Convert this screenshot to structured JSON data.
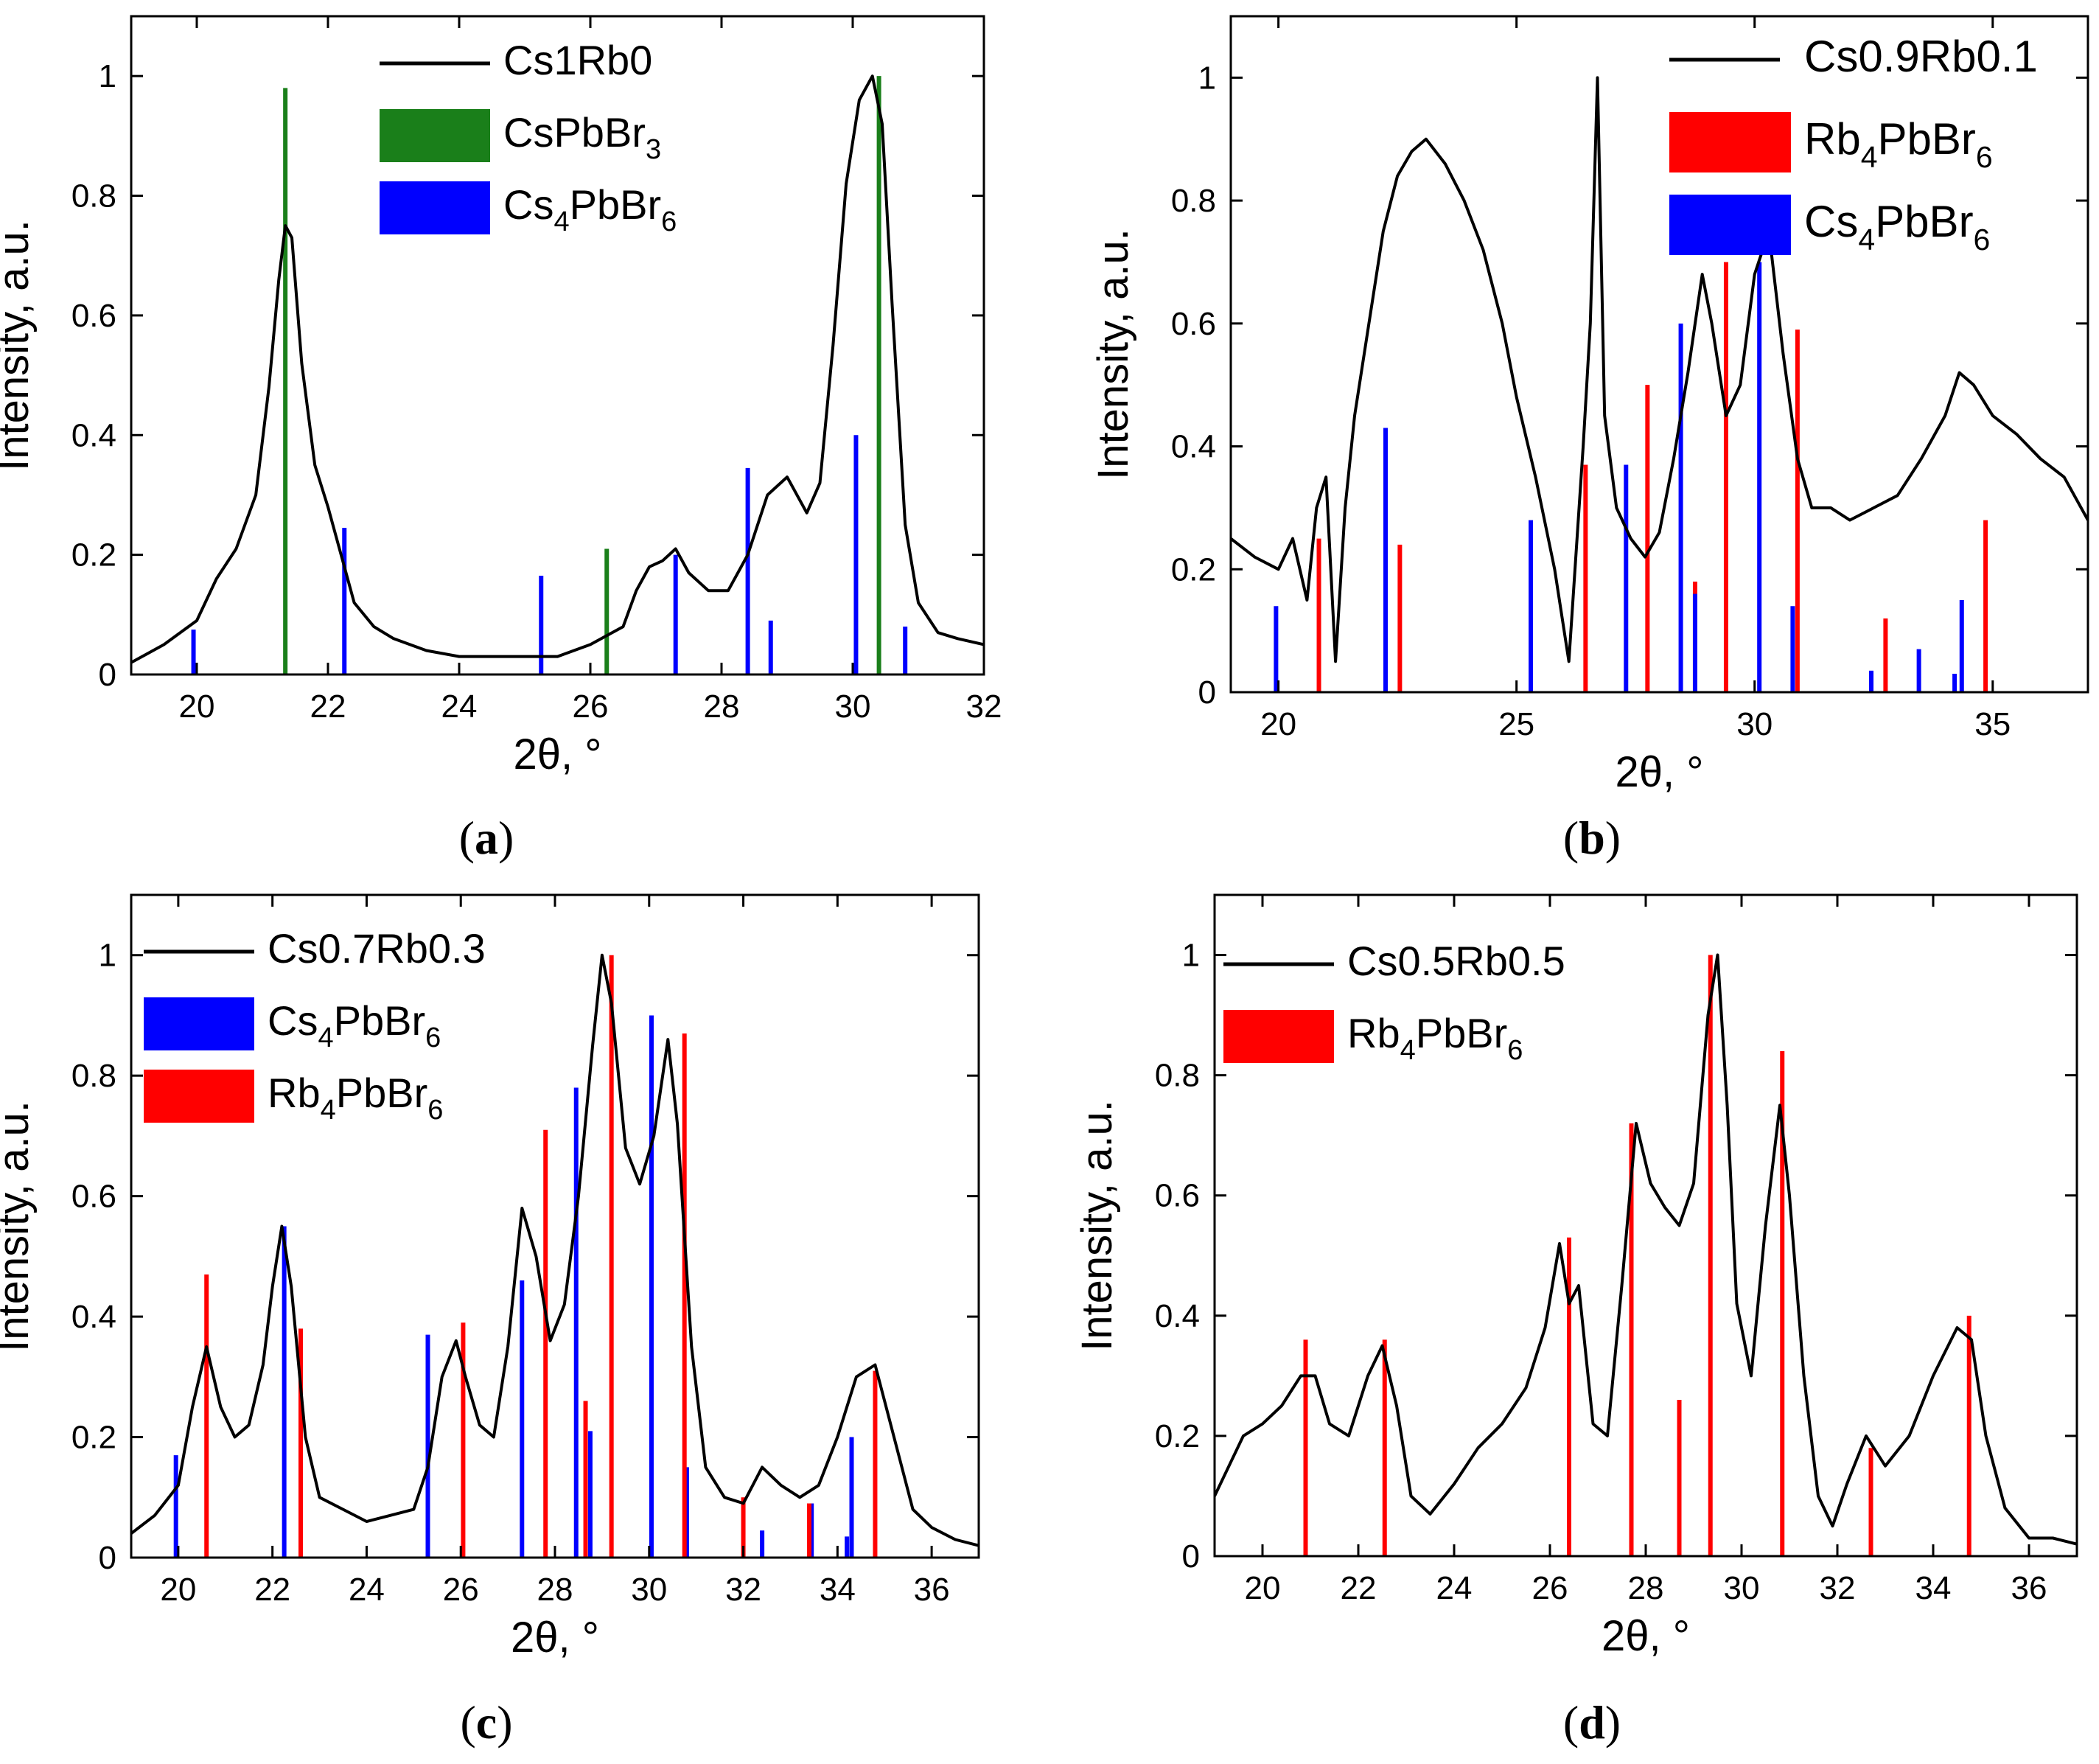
{
  "chart_data": [
    {
      "type": "line",
      "panel_label": "a",
      "xlabel": "2θ, °",
      "ylabel": "Intensity, a.u.",
      "xlim": [
        19,
        32
      ],
      "ylim": [
        0,
        1.1
      ],
      "xticks": [
        20,
        22,
        24,
        26,
        28,
        30,
        32
      ],
      "yticks": [
        0.0,
        0.2,
        0.4,
        0.6,
        0.8,
        1.0
      ],
      "series": [
        {
          "name": "Cs1Rb0",
          "color": "#000000",
          "x": [
            19.0,
            19.5,
            20.0,
            20.3,
            20.6,
            20.9,
            21.1,
            21.25,
            21.35,
            21.45,
            21.6,
            21.8,
            22.0,
            22.2,
            22.4,
            22.7,
            23.0,
            23.5,
            24.0,
            24.5,
            25.0,
            25.5,
            26.0,
            26.5,
            26.7,
            26.9,
            27.1,
            27.3,
            27.5,
            27.8,
            28.1,
            28.4,
            28.7,
            29.0,
            29.3,
            29.5,
            29.7,
            29.9,
            30.1,
            30.3,
            30.45,
            30.6,
            30.8,
            31.0,
            31.3,
            31.6,
            32.0
          ],
          "y": [
            0.02,
            0.05,
            0.09,
            0.16,
            0.21,
            0.3,
            0.48,
            0.66,
            0.75,
            0.73,
            0.52,
            0.35,
            0.28,
            0.2,
            0.12,
            0.08,
            0.06,
            0.04,
            0.03,
            0.03,
            0.03,
            0.03,
            0.05,
            0.08,
            0.14,
            0.18,
            0.19,
            0.21,
            0.17,
            0.14,
            0.14,
            0.2,
            0.3,
            0.33,
            0.27,
            0.32,
            0.55,
            0.82,
            0.96,
            1.0,
            0.92,
            0.62,
            0.25,
            0.12,
            0.07,
            0.06,
            0.05
          ]
        }
      ],
      "references": [
        {
          "name": "CsPbBr3",
          "legend_main": "CsPbBr",
          "legend_sub": "3",
          "color": "#1a7f1a",
          "x": [
            21.35,
            26.25,
            30.4
          ],
          "y": [
            0.98,
            0.21,
            1.0
          ]
        },
        {
          "name": "Cs4PbBr6",
          "legend_main": "Cs",
          "legend_sub1": "4",
          "legend_mid": "PbBr",
          "legend_sub2": "6",
          "color": "#0000ff",
          "x": [
            19.95,
            22.25,
            25.25,
            27.3,
            28.4,
            28.75,
            30.05,
            30.8
          ],
          "y": [
            0.075,
            0.245,
            0.165,
            0.2,
            0.345,
            0.09,
            0.4,
            0.08
          ]
        }
      ],
      "legend_position": "top-center"
    },
    {
      "type": "line",
      "panel_label": "b",
      "xlabel": "2θ, °",
      "ylabel": "Intensity, a.u.",
      "xlim": [
        19,
        37
      ],
      "ylim": [
        0,
        1.1
      ],
      "xticks": [
        20,
        25,
        30,
        35
      ],
      "yticks": [
        0.0,
        0.2,
        0.4,
        0.6,
        0.8,
        1.0
      ],
      "series": [
        {
          "name": "Cs0.9Rb0.1",
          "color": "#000000",
          "x": [
            19.0,
            19.5,
            20.0,
            20.3,
            20.6,
            20.8,
            21.0,
            21.2,
            21.4,
            21.6,
            21.9,
            22.2,
            22.5,
            22.8,
            23.1,
            23.5,
            23.9,
            24.3,
            24.7,
            25.0,
            25.4,
            25.8,
            26.1,
            26.4,
            26.55,
            26.7,
            26.85,
            27.1,
            27.4,
            27.7,
            28.0,
            28.3,
            28.6,
            28.9,
            29.1,
            29.4,
            29.7,
            30.0,
            30.3,
            30.6,
            30.9,
            31.2,
            31.6,
            32.0,
            32.5,
            33.0,
            33.5,
            34.0,
            34.3,
            34.6,
            35.0,
            35.5,
            36.0,
            36.5,
            37.0
          ],
          "y": [
            0.25,
            0.22,
            0.2,
            0.25,
            0.15,
            0.3,
            0.35,
            0.05,
            0.3,
            0.45,
            0.6,
            0.75,
            0.84,
            0.88,
            0.9,
            0.86,
            0.8,
            0.72,
            0.6,
            0.48,
            0.35,
            0.2,
            0.05,
            0.4,
            0.6,
            1.0,
            0.45,
            0.3,
            0.25,
            0.22,
            0.26,
            0.38,
            0.52,
            0.68,
            0.6,
            0.45,
            0.5,
            0.68,
            0.75,
            0.55,
            0.38,
            0.3,
            0.3,
            0.28,
            0.3,
            0.32,
            0.38,
            0.45,
            0.52,
            0.5,
            0.45,
            0.42,
            0.38,
            0.35,
            0.28
          ]
        }
      ],
      "references": [
        {
          "name": "Rb4PbBr6",
          "legend_main": "Rb",
          "legend_sub1": "4",
          "legend_mid": "PbBr",
          "legend_sub2": "6",
          "color": "#ff0000",
          "x": [
            20.85,
            22.55,
            26.45,
            27.75,
            28.75,
            29.4,
            30.9,
            32.75,
            34.85
          ],
          "y": [
            0.25,
            0.24,
            0.37,
            0.5,
            0.18,
            0.7,
            0.59,
            0.12,
            0.28
          ]
        },
        {
          "name": "Cs4PbBr6",
          "legend_main": "Cs",
          "legend_sub1": "4",
          "legend_mid": "PbBr",
          "legend_sub2": "6",
          "color": "#0000ff",
          "x": [
            19.95,
            22.25,
            25.3,
            27.3,
            28.45,
            28.75,
            30.1,
            30.8,
            32.45,
            33.45,
            34.2,
            34.35
          ],
          "y": [
            0.14,
            0.43,
            0.28,
            0.37,
            0.6,
            0.16,
            0.7,
            0.14,
            0.035,
            0.07,
            0.03,
            0.15
          ]
        }
      ],
      "legend_position": "top-right"
    },
    {
      "type": "line",
      "panel_label": "c",
      "xlabel": "2θ, °",
      "ylabel": "Intensity, a.u.",
      "xlim": [
        19,
        37
      ],
      "ylim": [
        0,
        1.1
      ],
      "xticks": [
        20,
        22,
        24,
        26,
        28,
        30,
        32,
        34,
        36
      ],
      "yticks": [
        0.0,
        0.2,
        0.4,
        0.6,
        0.8,
        1.0
      ],
      "series": [
        {
          "name": "Cs0.7Rb0.3",
          "color": "#000000",
          "x": [
            19.0,
            19.5,
            20.0,
            20.3,
            20.6,
            20.9,
            21.2,
            21.5,
            21.8,
            22.0,
            22.2,
            22.4,
            22.7,
            23.0,
            23.5,
            24.0,
            24.5,
            25.0,
            25.3,
            25.6,
            25.9,
            26.1,
            26.4,
            26.7,
            27.0,
            27.3,
            27.6,
            27.9,
            28.2,
            28.5,
            28.8,
            29.0,
            29.2,
            29.5,
            29.8,
            30.1,
            30.4,
            30.6,
            30.9,
            31.2,
            31.6,
            32.0,
            32.4,
            32.8,
            33.2,
            33.6,
            34.0,
            34.4,
            34.8,
            35.2,
            35.6,
            36.0,
            36.5,
            37.0
          ],
          "y": [
            0.04,
            0.07,
            0.12,
            0.25,
            0.35,
            0.25,
            0.2,
            0.22,
            0.32,
            0.45,
            0.55,
            0.45,
            0.2,
            0.1,
            0.08,
            0.06,
            0.07,
            0.08,
            0.15,
            0.3,
            0.36,
            0.3,
            0.22,
            0.2,
            0.35,
            0.58,
            0.5,
            0.36,
            0.42,
            0.6,
            0.85,
            1.0,
            0.92,
            0.68,
            0.62,
            0.7,
            0.86,
            0.72,
            0.35,
            0.15,
            0.1,
            0.09,
            0.15,
            0.12,
            0.1,
            0.12,
            0.2,
            0.3,
            0.32,
            0.2,
            0.08,
            0.05,
            0.03,
            0.02
          ]
        }
      ],
      "references": [
        {
          "name": "Cs4PbBr6",
          "legend_main": "Cs",
          "legend_sub1": "4",
          "legend_mid": "PbBr",
          "legend_sub2": "6",
          "color": "#0000ff",
          "x": [
            19.95,
            22.25,
            25.3,
            27.3,
            28.45,
            28.75,
            30.05,
            30.8,
            32.4,
            33.45,
            34.2,
            34.3
          ],
          "y": [
            0.17,
            0.55,
            0.37,
            0.46,
            0.78,
            0.21,
            0.9,
            0.15,
            0.045,
            0.09,
            0.035,
            0.2
          ]
        },
        {
          "name": "Rb4PbBr6",
          "legend_main": "Rb",
          "legend_sub1": "4",
          "legend_mid": "PbBr",
          "legend_sub2": "6",
          "color": "#ff0000",
          "x": [
            20.6,
            22.6,
            26.05,
            27.8,
            28.65,
            29.2,
            30.75,
            32.0,
            33.4,
            34.8
          ],
          "y": [
            0.47,
            0.38,
            0.39,
            0.71,
            0.26,
            1.0,
            0.87,
            0.1,
            0.09,
            0.31
          ]
        }
      ],
      "legend_position": "top-left"
    },
    {
      "type": "line",
      "panel_label": "d",
      "xlabel": "2θ, °",
      "ylabel": "Intensity, a.u.",
      "xlim": [
        19,
        37
      ],
      "ylim": [
        0,
        1.1
      ],
      "xticks": [
        20,
        22,
        24,
        26,
        28,
        30,
        32,
        34,
        36
      ],
      "yticks": [
        0.0,
        0.2,
        0.4,
        0.6,
        0.8,
        1.0
      ],
      "series": [
        {
          "name": "Cs0.5Rb0.5",
          "color": "#000000",
          "x": [
            19.0,
            19.3,
            19.6,
            20.0,
            20.4,
            20.8,
            21.1,
            21.4,
            21.8,
            22.2,
            22.5,
            22.8,
            23.1,
            23.5,
            24.0,
            24.5,
            25.0,
            25.5,
            25.9,
            26.2,
            26.4,
            26.6,
            26.9,
            27.2,
            27.5,
            27.8,
            28.1,
            28.4,
            28.7,
            29.0,
            29.3,
            29.5,
            29.7,
            29.9,
            30.2,
            30.5,
            30.8,
            31.0,
            31.3,
            31.6,
            31.9,
            32.2,
            32.6,
            33.0,
            33.5,
            34.0,
            34.5,
            34.8,
            35.1,
            35.5,
            36.0,
            36.5,
            37.0
          ],
          "y": [
            0.1,
            0.15,
            0.2,
            0.22,
            0.25,
            0.3,
            0.3,
            0.22,
            0.2,
            0.3,
            0.35,
            0.25,
            0.1,
            0.07,
            0.12,
            0.18,
            0.22,
            0.28,
            0.38,
            0.52,
            0.42,
            0.45,
            0.22,
            0.2,
            0.45,
            0.72,
            0.62,
            0.58,
            0.55,
            0.62,
            0.9,
            1.0,
            0.75,
            0.42,
            0.3,
            0.55,
            0.75,
            0.6,
            0.3,
            0.1,
            0.05,
            0.12,
            0.2,
            0.15,
            0.2,
            0.3,
            0.38,
            0.36,
            0.2,
            0.08,
            0.03,
            0.03,
            0.02
          ]
        }
      ],
      "references": [
        {
          "name": "Rb4PbBr6",
          "legend_main": "Rb",
          "legend_sub1": "4",
          "legend_mid": "PbBr",
          "legend_sub2": "6",
          "color": "#ff0000",
          "x": [
            20.9,
            22.55,
            26.4,
            27.7,
            28.7,
            29.35,
            30.85,
            32.7,
            34.75
          ],
          "y": [
            0.36,
            0.36,
            0.53,
            0.72,
            0.26,
            1.0,
            0.84,
            0.18,
            0.4
          ]
        }
      ],
      "legend_position": "top-left"
    }
  ]
}
